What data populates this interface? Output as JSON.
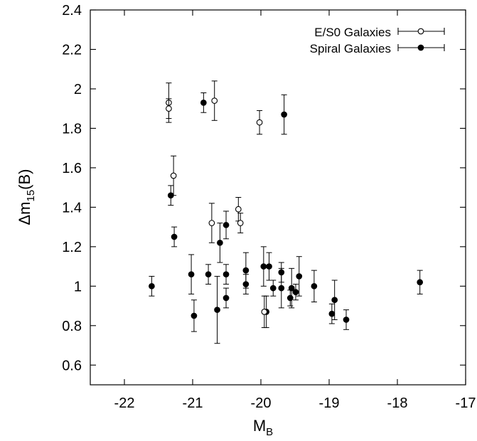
{
  "chart_data": {
    "type": "scatter",
    "title": "",
    "xlabel": {
      "main": "M",
      "sub": "B"
    },
    "ylabel": {
      "prefix": "Δm",
      "sub": "15",
      "suffix": "(B)"
    },
    "xlim": [
      -22.5,
      -17
    ],
    "ylim": [
      0.5,
      2.4
    ],
    "xticks": [
      -22,
      -21,
      -20,
      -19,
      -18,
      -17
    ],
    "yticks": [
      0.6,
      0.8,
      1,
      1.2,
      1.4,
      1.6,
      1.8,
      2,
      2.2,
      2.4
    ],
    "grid": false,
    "legend_position": "top-right",
    "series": [
      {
        "name": "E/S0 Galaxies",
        "marker": "open-circle",
        "points": [
          {
            "x": -21.35,
            "y": 1.93,
            "err": 0.1
          },
          {
            "x": -21.35,
            "y": 1.9,
            "err": 0.05
          },
          {
            "x": -20.68,
            "y": 1.94,
            "err": 0.1
          },
          {
            "x": -21.28,
            "y": 1.56,
            "err": 0.1
          },
          {
            "x": -20.72,
            "y": 1.32,
            "err": 0.1
          },
          {
            "x": -20.33,
            "y": 1.39,
            "err": 0.06
          },
          {
            "x": -20.3,
            "y": 1.32,
            "err": 0.05
          },
          {
            "x": -20.02,
            "y": 1.83,
            "err": 0.06
          },
          {
            "x": -19.95,
            "y": 0.87,
            "err": 0.08
          }
        ]
      },
      {
        "name": "Spiral Galaxies",
        "marker": "filled-circle",
        "points": [
          {
            "x": -21.6,
            "y": 1.0,
            "err": 0.05
          },
          {
            "x": -21.32,
            "y": 1.46,
            "err": 0.05
          },
          {
            "x": -21.27,
            "y": 1.25,
            "err": 0.05
          },
          {
            "x": -21.02,
            "y": 1.06,
            "err": 0.1
          },
          {
            "x": -20.98,
            "y": 0.85,
            "err": 0.08
          },
          {
            "x": -20.84,
            "y": 1.93,
            "err": 0.05
          },
          {
            "x": -20.77,
            "y": 1.06,
            "err": 0.05
          },
          {
            "x": -20.64,
            "y": 0.88,
            "err": 0.17
          },
          {
            "x": -20.6,
            "y": 1.22,
            "err": 0.1
          },
          {
            "x": -20.51,
            "y": 1.31,
            "err": 0.07
          },
          {
            "x": -20.51,
            "y": 1.06,
            "err": 0.05
          },
          {
            "x": -20.51,
            "y": 0.94,
            "err": 0.05
          },
          {
            "x": -20.22,
            "y": 1.08,
            "err": 0.09
          },
          {
            "x": -20.22,
            "y": 1.01,
            "err": 0.05
          },
          {
            "x": -19.96,
            "y": 1.1,
            "err": 0.1
          },
          {
            "x": -19.92,
            "y": 0.87,
            "err": 0.08
          },
          {
            "x": -19.88,
            "y": 1.1,
            "err": 0.07
          },
          {
            "x": -19.82,
            "y": 0.99,
            "err": 0.04
          },
          {
            "x": -19.7,
            "y": 1.07,
            "err": 0.05
          },
          {
            "x": -19.7,
            "y": 0.99,
            "err": 0.1
          },
          {
            "x": -19.66,
            "y": 1.87,
            "err": 0.1
          },
          {
            "x": -19.57,
            "y": 0.94,
            "err": 0.04
          },
          {
            "x": -19.55,
            "y": 0.99,
            "err": 0.1
          },
          {
            "x": -19.49,
            "y": 0.97,
            "err": 0.04
          },
          {
            "x": -19.44,
            "y": 1.05,
            "err": 0.1
          },
          {
            "x": -19.22,
            "y": 1.0,
            "err": 0.08
          },
          {
            "x": -18.96,
            "y": 0.86,
            "err": 0.05
          },
          {
            "x": -18.92,
            "y": 0.93,
            "err": 0.1
          },
          {
            "x": -18.75,
            "y": 0.83,
            "err": 0.05
          },
          {
            "x": -17.67,
            "y": 1.02,
            "err": 0.06
          }
        ]
      }
    ]
  }
}
